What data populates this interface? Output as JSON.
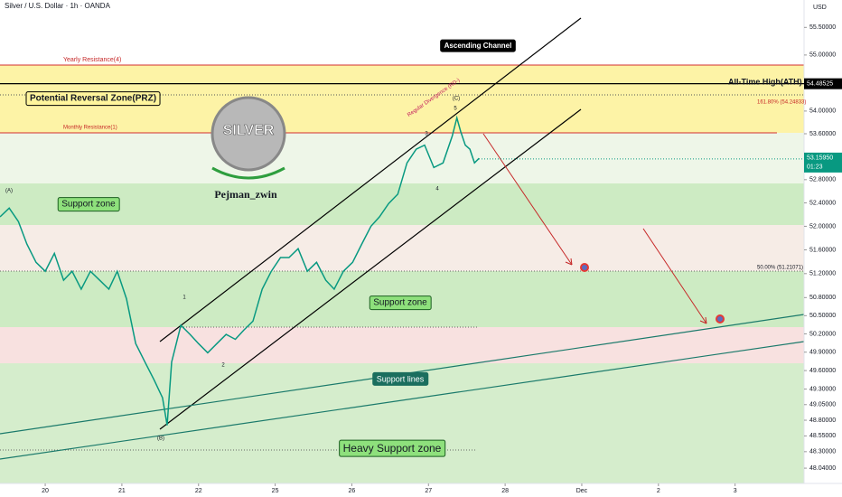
{
  "chart_data": {
    "type": "line",
    "title": "Silver / U.S. Dollar · 1h · OANDA",
    "y_label": "USD",
    "log_y": true,
    "color": "#089981",
    "x": [
      -0.59,
      -0.47,
      -0.35,
      -0.24,
      -0.12,
      0.0,
      0.12,
      0.24,
      0.35,
      0.47,
      0.59,
      0.71,
      0.83,
      0.94,
      1.06,
      1.18,
      1.3,
      1.42,
      1.53,
      1.59,
      1.65,
      1.77,
      1.89,
      2.0,
      2.12,
      2.24,
      2.36,
      2.48,
      2.59,
      2.71,
      2.83,
      2.95,
      3.07,
      3.18,
      3.3,
      3.42,
      3.54,
      3.66,
      3.77,
      3.89,
      4.01,
      4.13,
      4.25,
      4.36,
      4.48,
      4.6,
      4.72,
      4.84,
      4.95,
      5.07,
      5.19,
      5.31,
      5.37,
      5.42,
      5.48,
      5.54,
      5.6,
      5.66
    ],
    "values": [
      52.16,
      52.31,
      52.08,
      51.7,
      51.39,
      51.24,
      51.54,
      51.09,
      51.24,
      50.94,
      51.24,
      51.09,
      50.94,
      51.24,
      50.78,
      50.04,
      49.74,
      49.45,
      49.16,
      48.72,
      49.74,
      50.34,
      50.19,
      50.04,
      49.89,
      50.04,
      50.19,
      50.11,
      50.26,
      50.41,
      50.94,
      51.24,
      51.47,
      51.47,
      51.62,
      51.24,
      51.39,
      51.09,
      50.94,
      51.24,
      51.39,
      51.7,
      52.0,
      52.16,
      52.39,
      52.55,
      53.09,
      53.33,
      53.4,
      53.01,
      53.09,
      53.56,
      53.88,
      53.64,
      53.4,
      53.33,
      53.09,
      53.17
    ],
    "xlim": [
      -0.59,
      9.9
    ],
    "xticks": [
      {
        "value": 0,
        "label": "20"
      },
      {
        "value": 1,
        "label": "21"
      },
      {
        "value": 2,
        "label": "22"
      },
      {
        "value": 3,
        "label": "25"
      },
      {
        "value": 4,
        "label": "26"
      },
      {
        "value": 5,
        "label": "27"
      },
      {
        "value": 6,
        "label": "28"
      },
      {
        "value": 7,
        "label": "Dec"
      },
      {
        "value": 8,
        "label": "2"
      },
      {
        "value": 9,
        "label": "3"
      }
    ],
    "ylim": [
      47.8,
      56.0
    ],
    "yticks": [
      {
        "value": 55.5,
        "label": "55.50000"
      },
      {
        "value": 55.0,
        "label": "55.00000"
      },
      {
        "value": 54.0,
        "label": "54.00000"
      },
      {
        "value": 53.6,
        "label": "53.60000"
      },
      {
        "value": 52.8,
        "label": "52.80000"
      },
      {
        "value": 52.4,
        "label": "52.40000"
      },
      {
        "value": 52.0,
        "label": "52.00000"
      },
      {
        "value": 51.6,
        "label": "51.60000"
      },
      {
        "value": 51.2,
        "label": "51.20000"
      },
      {
        "value": 50.8,
        "label": "50.80000"
      },
      {
        "value": 50.5,
        "label": "50.50000"
      },
      {
        "value": 50.2,
        "label": "50.20000"
      },
      {
        "value": 49.9,
        "label": "49.90000"
      },
      {
        "value": 49.6,
        "label": "49.60000"
      },
      {
        "value": 49.3,
        "label": "49.30000"
      },
      {
        "value": 49.05,
        "label": "49.05000"
      },
      {
        "value": 48.8,
        "label": "48.80000"
      },
      {
        "value": 48.55,
        "label": "48.55000"
      },
      {
        "value": 48.3,
        "label": "48.30000"
      },
      {
        "value": 48.04,
        "label": "48.04000"
      }
    ],
    "ath": {
      "value": 54.48525,
      "label": "54.48525"
    },
    "last_price": {
      "value": 53.1595,
      "label": "53.15950"
    },
    "countdown": "01:23",
    "annotations": [
      "Yearly Resistance(4)",
      "Potential Reversal Zone(PRZ)",
      "Monthly Resistance(1)",
      "Ascending Channel",
      "All-Time High(ATH)",
      "161.80% (54.24833)",
      "Regular Divergence (RD-)",
      "(C)",
      "5",
      "3",
      "4",
      "1",
      "2",
      "(A)",
      "(B)",
      "SILVER",
      "Pejman_zwin",
      "Support zone",
      "Support zone",
      "Support lines",
      "Heavy Support zone",
      "50.00% (51.21071)"
    ]
  }
}
